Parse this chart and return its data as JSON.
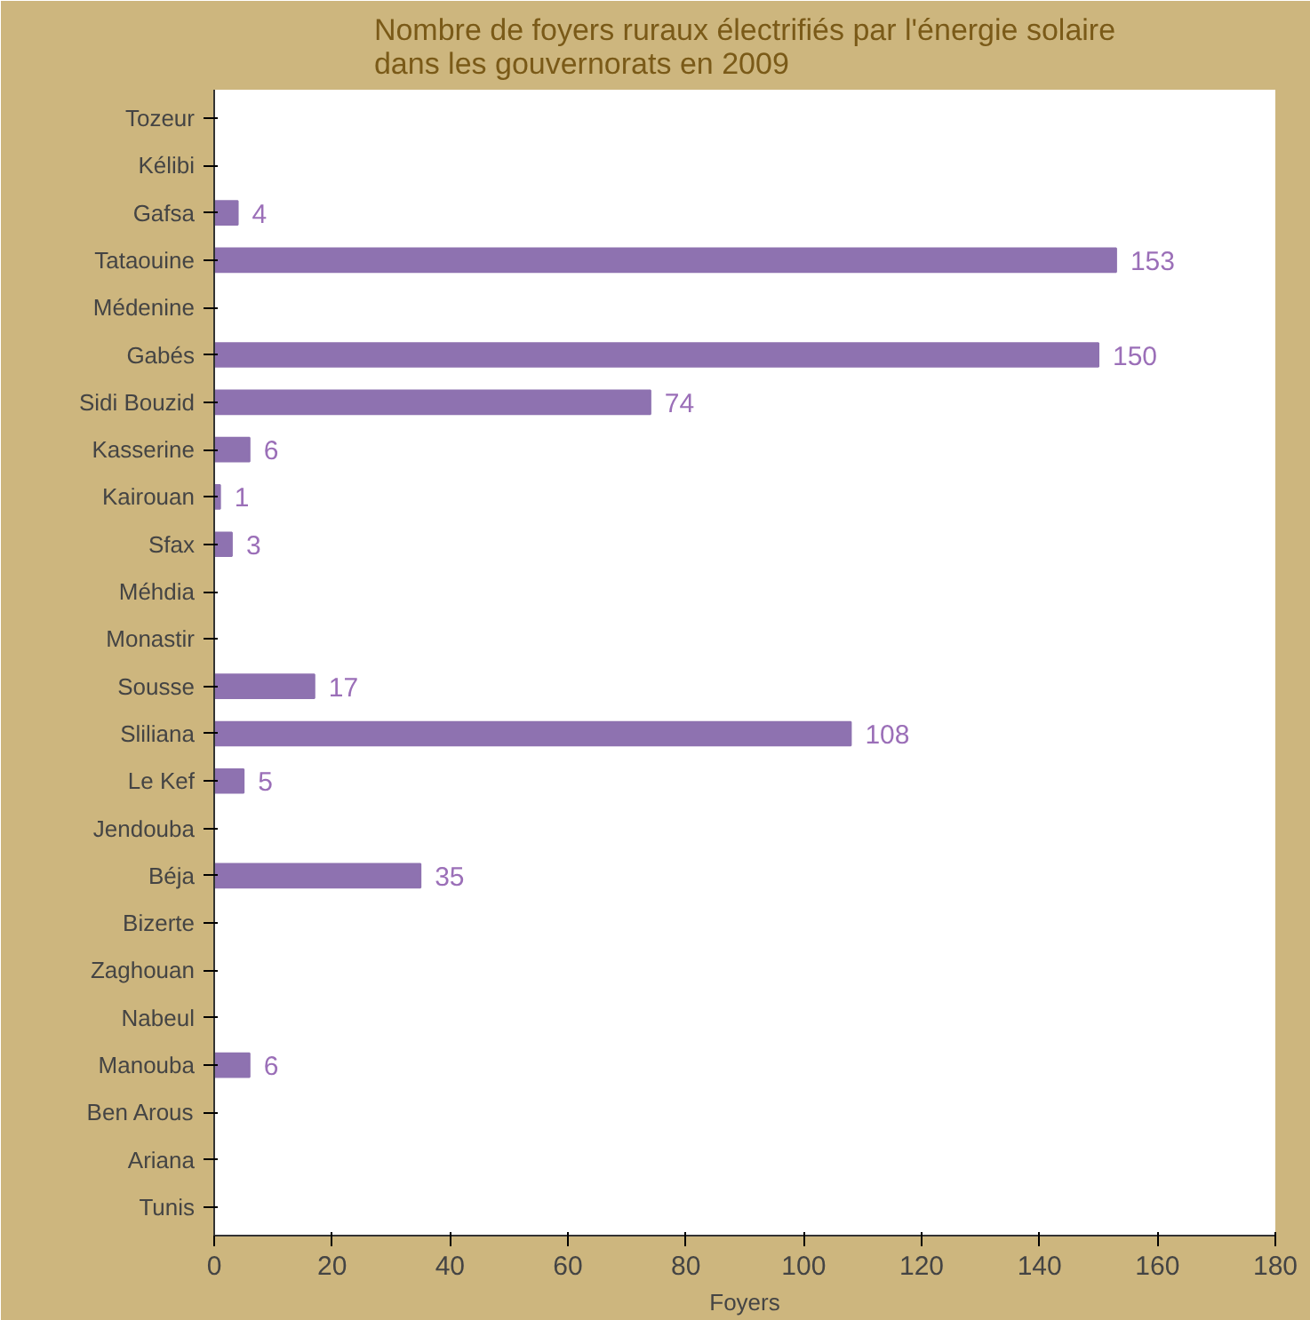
{
  "chart_data": {
    "type": "bar",
    "orientation": "horizontal",
    "title": "Nombre de foyers ruraux électrifiés par l'énergie solaire dans les gouvernorats en 2009",
    "xlabel": "Foyers",
    "categories": [
      "Tozeur",
      "Kélibi",
      "Gafsa",
      "Tataouine",
      "Médenine",
      "Gabés",
      "Sidi Bouzid",
      "Kasserine",
      "Kairouan",
      "Sfax",
      "Méhdia",
      "Monastir",
      "Sousse",
      "Sliliana",
      "Le Kef",
      "Jendouba",
      "Béja",
      "Bizerte",
      "Zaghouan",
      "Nabeul",
      "Manouba",
      "Ben Arous",
      "Ariana",
      "Tunis"
    ],
    "values": [
      0,
      0,
      4,
      153,
      0,
      150,
      74,
      6,
      1,
      3,
      0,
      0,
      17,
      108,
      5,
      0,
      35,
      0,
      0,
      0,
      6,
      0,
      0,
      0
    ],
    "value_labels": [
      null,
      null,
      "4",
      "153",
      null,
      "150",
      "74",
      "6",
      "1",
      "3",
      null,
      null,
      "17",
      "108",
      "5",
      null,
      "35",
      null,
      null,
      null,
      "6",
      null,
      null,
      null
    ],
    "color": "#8e72b0",
    "xlim": [
      0,
      180
    ],
    "xticks": [
      0,
      20,
      40,
      60,
      80,
      100,
      120,
      140,
      160,
      180
    ],
    "grid": false
  }
}
